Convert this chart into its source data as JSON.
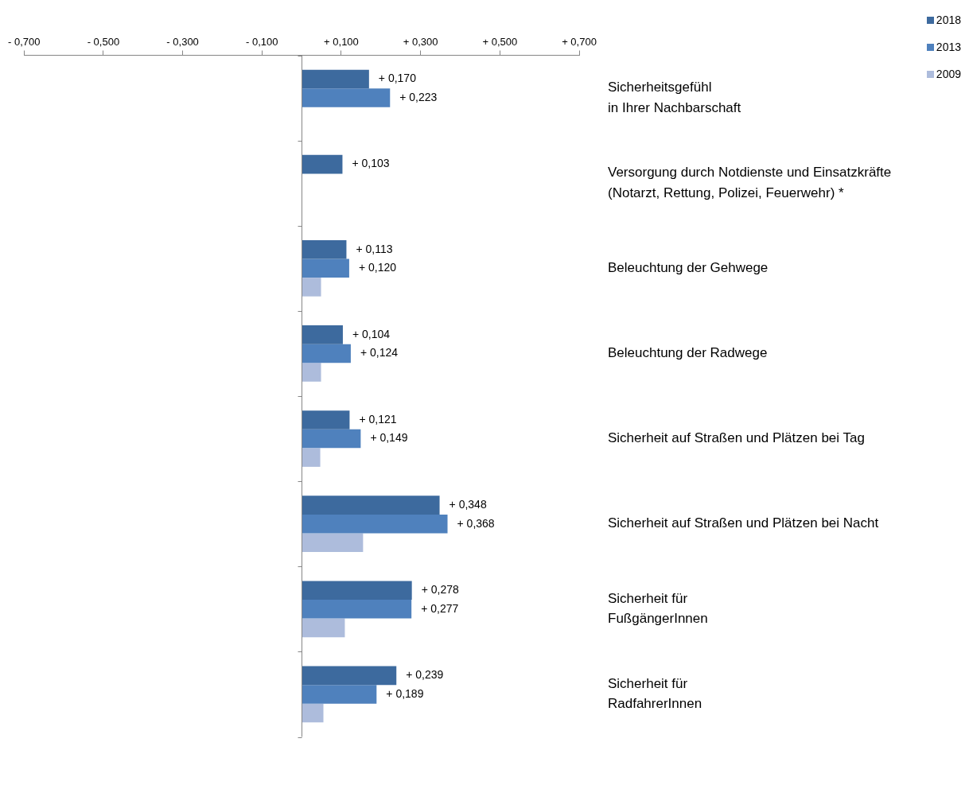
{
  "chart_data": {
    "type": "bar",
    "orientation": "horizontal",
    "legend": "top right",
    "grid": false,
    "categories": [
      "Sicherheitsgefühl\nin Ihrer Nachbarschaft",
      "Versorgung durch Notdienste und Einsatzkräfte\n(Notarzt, Rettung, Polizei, Feuerwehr) *",
      "Beleuchtung der Gehwege",
      "Beleuchtung der Radwege",
      "Sicherheit auf Straßen und Plätzen bei Tag",
      "Sicherheit auf Straßen und Plätzen bei Nacht",
      "Sicherheit für\nFußgängerInnen",
      "Sicherheit für\nRadfahrerInnen"
    ],
    "xlim": [
      -0.7,
      0.7
    ],
    "xticks": [
      {
        "value": -0.7,
        "label": "- 0,700"
      },
      {
        "value": -0.5,
        "label": "- 0,500"
      },
      {
        "value": -0.3,
        "label": "- 0,300"
      },
      {
        "value": -0.1,
        "label": "- 0,100"
      },
      {
        "value": 0.1,
        "label": "+ 0,100"
      },
      {
        "value": 0.3,
        "label": "+ 0,300"
      },
      {
        "value": 0.5,
        "label": "+ 0,500"
      },
      {
        "value": 0.7,
        "label": "+ 0,700"
      }
    ],
    "series": [
      {
        "name": "2018",
        "color": "#3d6a9e",
        "values": [
          0.17,
          0.103,
          0.113,
          0.104,
          0.121,
          0.348,
          0.278,
          0.239
        ],
        "value_labels": [
          "+ 0,170",
          "+ 0,103",
          "+ 0,113",
          "+ 0,104",
          "+ 0,121",
          "+ 0,348",
          "+ 0,278",
          "+ 0,239"
        ]
      },
      {
        "name": "2013",
        "color": "#4f81bd",
        "values": [
          0.223,
          null,
          0.12,
          0.124,
          0.149,
          0.368,
          0.277,
          0.189
        ],
        "value_labels": [
          "+ 0,223",
          null,
          "+ 0,120",
          "+ 0,124",
          "+ 0,149",
          "+ 0,368",
          "+ 0,277",
          "+ 0,189"
        ]
      },
      {
        "name": "2009",
        "color": "#adbcdc",
        "values": [
          null,
          null,
          0.049,
          0.049,
          0.047,
          0.155,
          0.109,
          0.055
        ]
      }
    ]
  }
}
